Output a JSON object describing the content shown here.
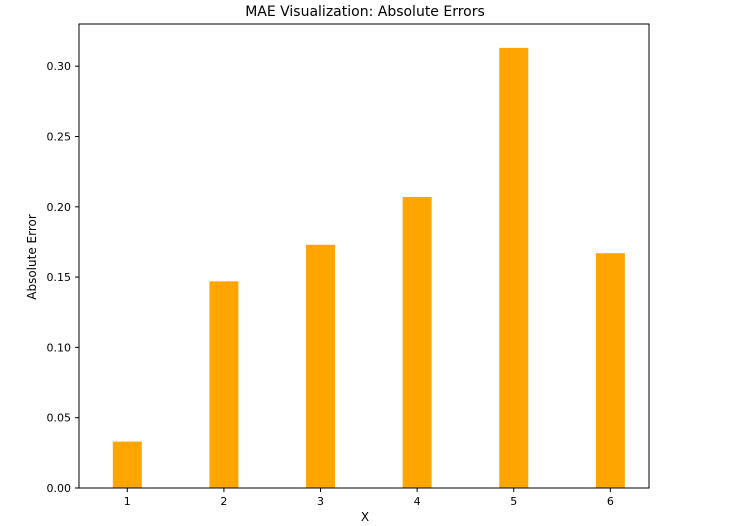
{
  "chart_data": {
    "type": "bar",
    "title": "MAE Visualization: Absolute Errors",
    "xlabel": "X",
    "ylabel": "Absolute Error",
    "categories": [
      "1",
      "2",
      "3",
      "4",
      "5",
      "6"
    ],
    "values": [
      0.033,
      0.147,
      0.173,
      0.207,
      0.313,
      0.167
    ],
    "xlim": [
      0.5,
      6.4
    ],
    "ylim": [
      0,
      0.33
    ],
    "yticks": [
      0.0,
      0.05,
      0.1,
      0.15,
      0.2,
      0.25,
      0.3
    ],
    "ytick_labels": [
      "0.00",
      "0.05",
      "0.10",
      "0.15",
      "0.20",
      "0.25",
      "0.30"
    ],
    "bar_color": "#ffa500",
    "grid": false,
    "legend": "none"
  }
}
